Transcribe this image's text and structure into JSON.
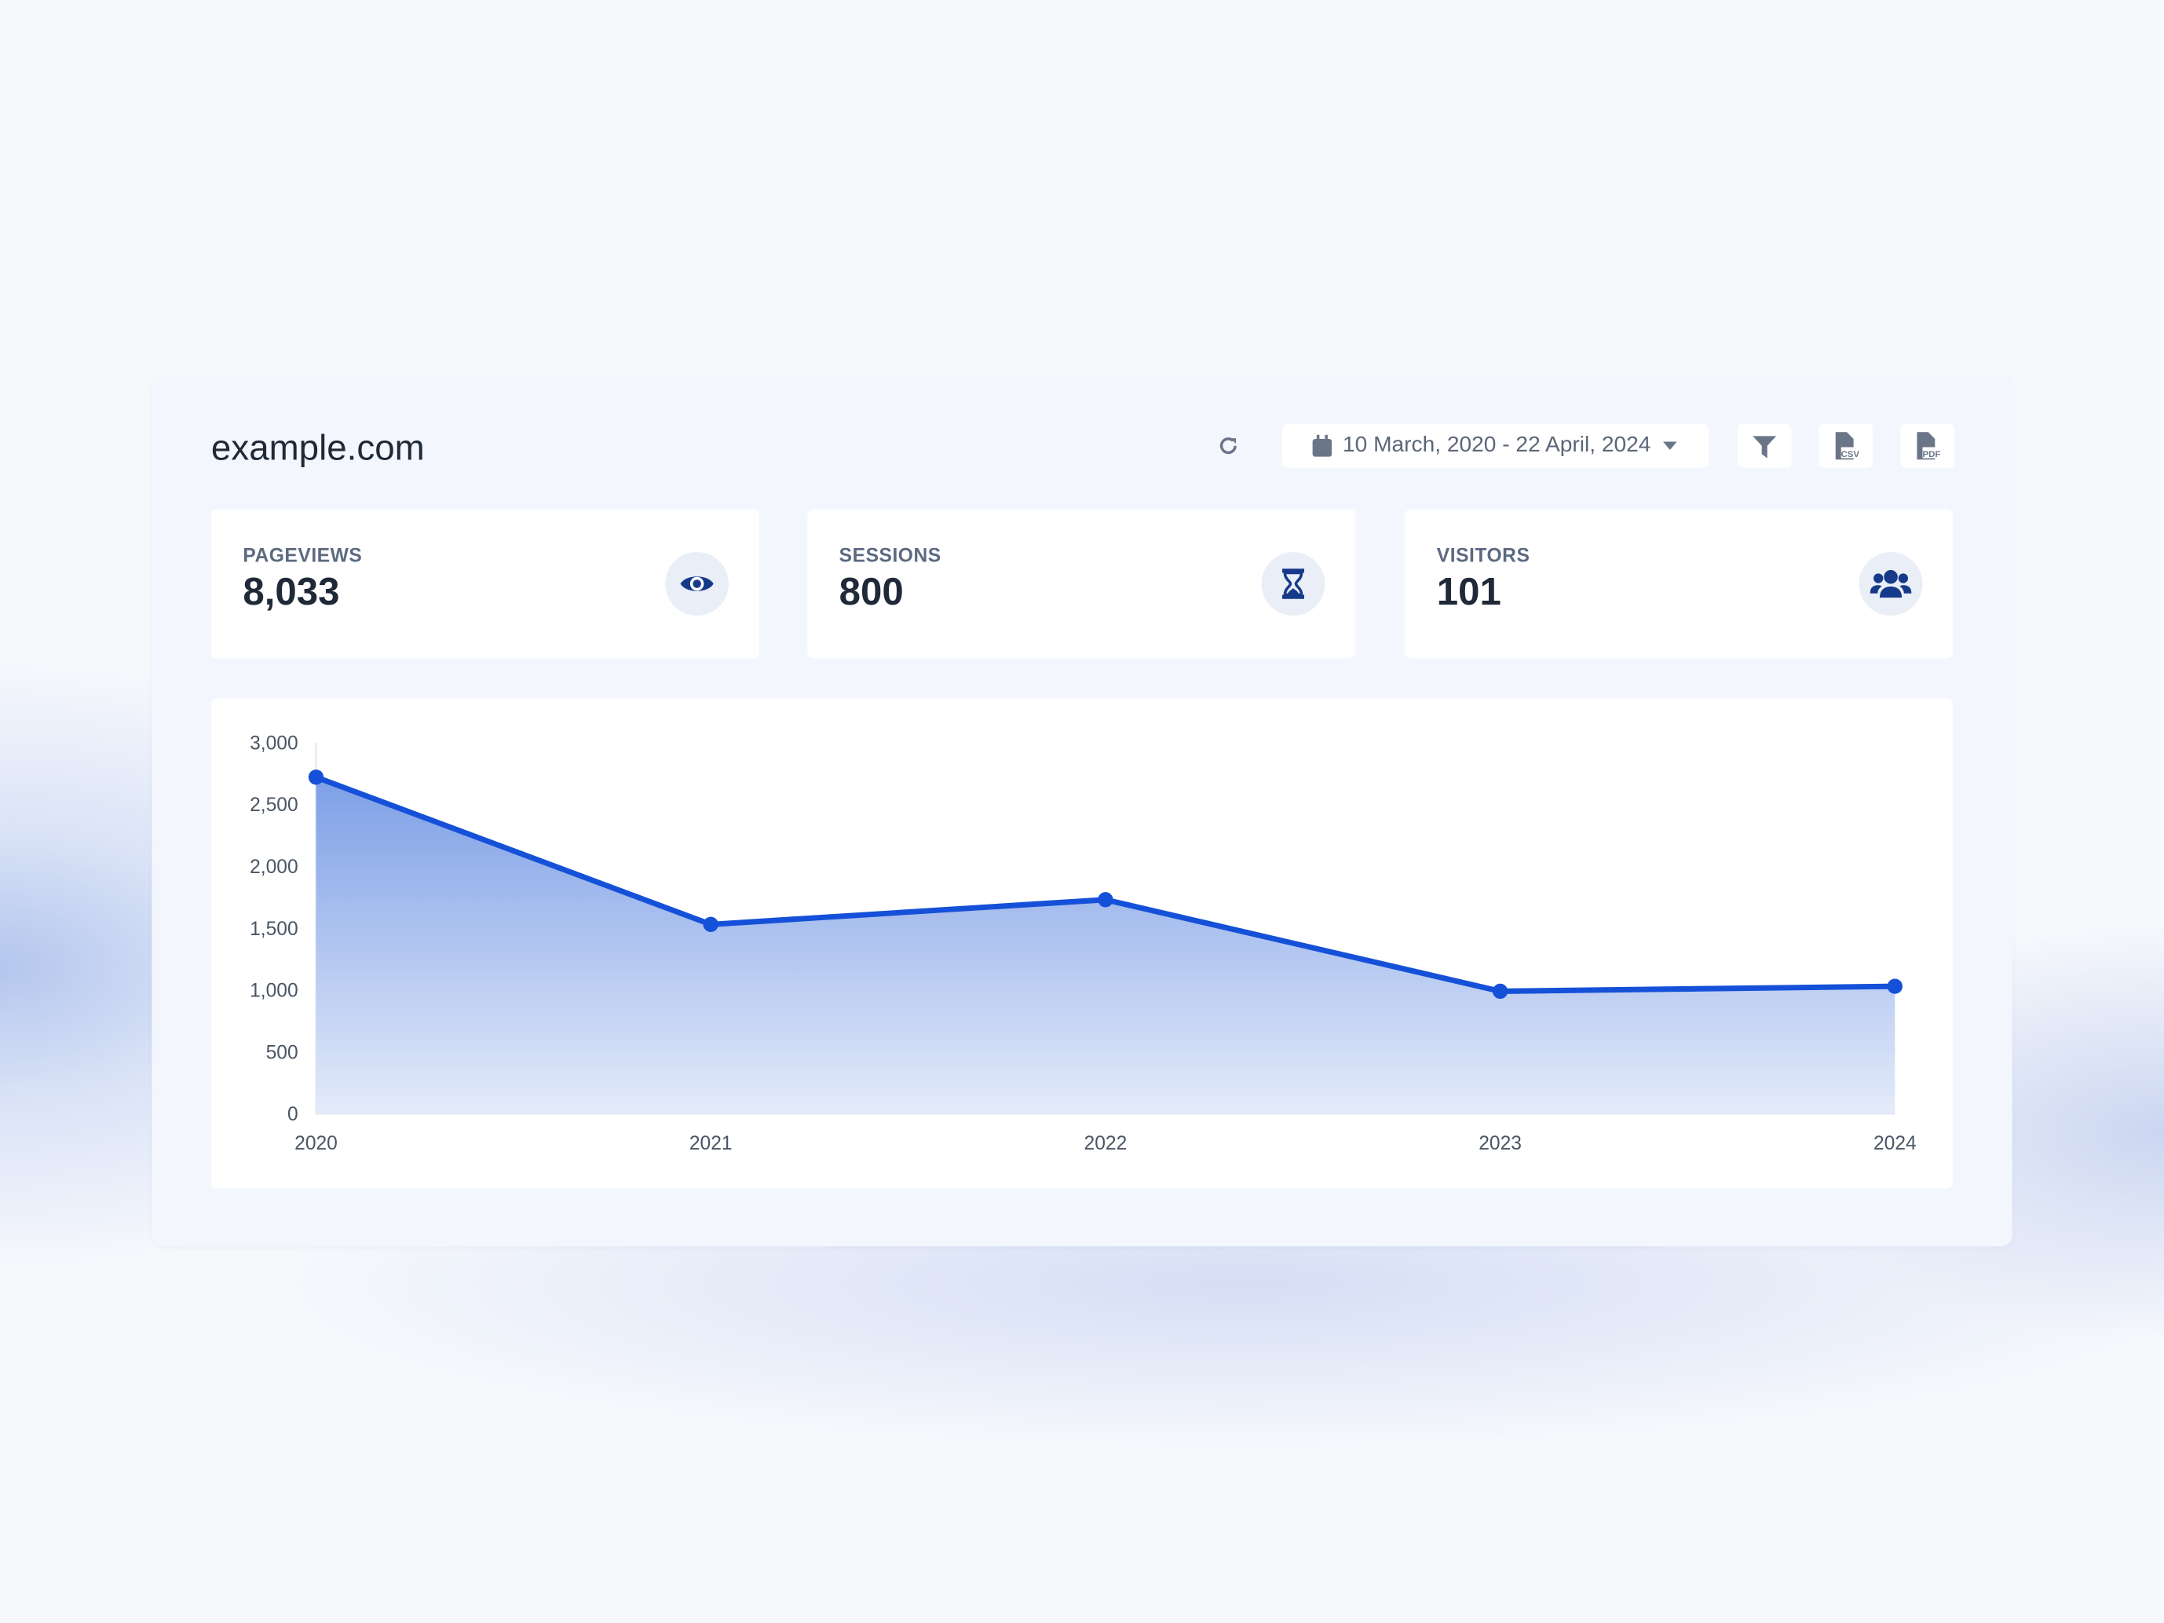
{
  "header": {
    "title": "example.com",
    "date_range": "10 March, 2020 - 22 April, 2024"
  },
  "toolbar": {
    "refresh_icon": "refresh-icon",
    "calendar_icon": "calendar-icon",
    "filter_icon": "filter-icon",
    "csv_label": "CSV",
    "pdf_label": "PDF"
  },
  "stats": [
    {
      "label": "PAGEVIEWS",
      "value": "8,033",
      "icon": "eye-icon"
    },
    {
      "label": "SESSIONS",
      "value": "800",
      "icon": "hourglass-icon"
    },
    {
      "label": "VISITORS",
      "value": "101",
      "icon": "users-icon"
    }
  ],
  "colors": {
    "accent": "#1551d8",
    "icon": "#163a8a",
    "text": "#1f2937"
  },
  "chart_data": {
    "type": "area",
    "categories": [
      "2020",
      "2021",
      "2022",
      "2023",
      "2024"
    ],
    "values": [
      2720,
      1530,
      1730,
      990,
      1030
    ],
    "ylim": [
      0,
      3000
    ],
    "yticks": [
      "0",
      "500",
      "1,000",
      "1,500",
      "2,000",
      "2,500",
      "3,000"
    ],
    "grid": false
  }
}
